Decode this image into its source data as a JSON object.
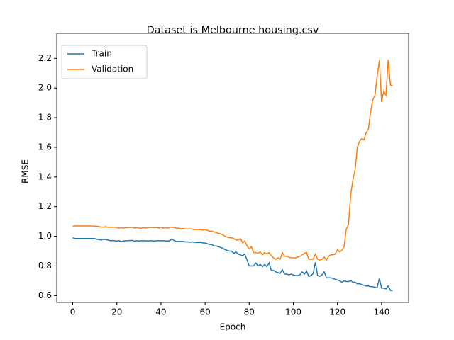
{
  "chart_data": {
    "type": "line",
    "title": "Dataset is Melbourne housing.csv",
    "x_label": "Epoch",
    "y_label": "RMSE",
    "x": [
      0,
      1,
      2,
      3,
      4,
      5,
      6,
      7,
      8,
      9,
      10,
      11,
      12,
      13,
      14,
      15,
      16,
      17,
      18,
      19,
      20,
      21,
      22,
      23,
      24,
      25,
      26,
      27,
      28,
      29,
      30,
      31,
      32,
      33,
      34,
      35,
      36,
      37,
      38,
      39,
      40,
      41,
      42,
      43,
      44,
      45,
      46,
      47,
      48,
      49,
      50,
      51,
      52,
      53,
      54,
      55,
      56,
      57,
      58,
      59,
      60,
      61,
      62,
      63,
      64,
      65,
      66,
      67,
      68,
      69,
      70,
      71,
      72,
      73,
      74,
      75,
      76,
      77,
      78,
      79,
      80,
      81,
      82,
      83,
      84,
      85,
      86,
      87,
      88,
      89,
      90,
      91,
      92,
      93,
      94,
      95,
      96,
      97,
      98,
      99,
      100,
      101,
      102,
      103,
      104,
      105,
      106,
      107,
      108,
      109,
      110,
      111,
      112,
      113,
      114,
      115,
      116,
      117,
      118,
      119,
      120,
      121,
      122,
      123,
      124,
      125,
      126,
      127,
      128,
      129,
      130,
      131,
      132,
      133,
      134,
      135,
      136,
      137,
      138,
      139,
      140,
      141,
      142,
      143,
      144,
      145
    ],
    "series": [
      {
        "name": "Train",
        "color": "#1f77b4",
        "values": [
          0.99,
          0.985,
          0.985,
          0.985,
          0.985,
          0.985,
          0.985,
          0.985,
          0.985,
          0.985,
          0.985,
          0.98,
          0.978,
          0.975,
          0.98,
          0.978,
          0.975,
          0.97,
          0.972,
          0.97,
          0.968,
          0.97,
          0.965,
          0.968,
          0.97,
          0.97,
          0.972,
          0.972,
          0.968,
          0.97,
          0.968,
          0.97,
          0.97,
          0.97,
          0.968,
          0.97,
          0.97,
          0.968,
          0.97,
          0.97,
          0.97,
          0.97,
          0.968,
          0.968,
          0.97,
          0.982,
          0.97,
          0.965,
          0.965,
          0.965,
          0.965,
          0.962,
          0.962,
          0.96,
          0.962,
          0.96,
          0.958,
          0.958,
          0.96,
          0.955,
          0.955,
          0.95,
          0.945,
          0.945,
          0.935,
          0.935,
          0.93,
          0.925,
          0.92,
          0.91,
          0.905,
          0.9,
          0.9,
          0.885,
          0.895,
          0.88,
          0.875,
          0.87,
          0.88,
          0.84,
          0.8,
          0.8,
          0.8,
          0.82,
          0.8,
          0.81,
          0.795,
          0.81,
          0.795,
          0.82,
          0.77,
          0.77,
          0.76,
          0.755,
          0.75,
          0.775,
          0.745,
          0.745,
          0.74,
          0.745,
          0.74,
          0.735,
          0.735,
          0.74,
          0.76,
          0.745,
          0.765,
          0.73,
          0.735,
          0.75,
          0.825,
          0.735,
          0.73,
          0.74,
          0.76,
          0.72,
          0.72,
          0.72,
          0.715,
          0.71,
          0.705,
          0.7,
          0.69,
          0.7,
          0.695,
          0.695,
          0.7,
          0.69,
          0.69,
          0.68,
          0.68,
          0.675,
          0.67,
          0.665,
          0.665,
          0.66,
          0.66,
          0.655,
          0.655,
          0.715,
          0.65,
          0.65,
          0.645,
          0.665,
          0.635,
          0.632
        ]
      },
      {
        "name": "Validation",
        "color": "#ff7f0e",
        "values": [
          1.07,
          1.07,
          1.07,
          1.07,
          1.07,
          1.07,
          1.07,
          1.07,
          1.07,
          1.07,
          1.068,
          1.068,
          1.065,
          1.062,
          1.062,
          1.065,
          1.06,
          1.062,
          1.06,
          1.062,
          1.058,
          1.055,
          1.058,
          1.055,
          1.058,
          1.058,
          1.06,
          1.06,
          1.055,
          1.058,
          1.055,
          1.055,
          1.058,
          1.055,
          1.058,
          1.06,
          1.06,
          1.058,
          1.06,
          1.055,
          1.06,
          1.055,
          1.058,
          1.055,
          1.058,
          1.062,
          1.058,
          1.055,
          1.055,
          1.052,
          1.052,
          1.05,
          1.048,
          1.05,
          1.048,
          1.045,
          1.045,
          1.045,
          1.045,
          1.042,
          1.045,
          1.04,
          1.035,
          1.035,
          1.03,
          1.025,
          1.02,
          1.018,
          1.01,
          1.0,
          0.995,
          0.99,
          0.99,
          0.985,
          0.975,
          0.975,
          0.985,
          0.955,
          0.97,
          0.935,
          0.915,
          0.93,
          0.89,
          0.89,
          0.885,
          0.895,
          0.875,
          0.89,
          0.88,
          0.89,
          0.87,
          0.855,
          0.845,
          0.855,
          0.845,
          0.89,
          0.865,
          0.865,
          0.86,
          0.855,
          0.855,
          0.855,
          0.86,
          0.865,
          0.875,
          0.885,
          0.89,
          0.845,
          0.845,
          0.845,
          0.88,
          0.845,
          0.84,
          0.845,
          0.86,
          0.84,
          0.865,
          0.875,
          0.875,
          0.88,
          0.91,
          0.895,
          0.905,
          0.93,
          1.05,
          1.08,
          1.28,
          1.38,
          1.45,
          1.6,
          1.64,
          1.66,
          1.65,
          1.7,
          1.72,
          1.84,
          1.92,
          1.95,
          2.08,
          2.185,
          1.905,
          1.98,
          1.95,
          2.19,
          2.02,
          2.015
        ]
      }
    ],
    "xlim": [
      -7.25,
      152.25
    ],
    "ylim": [
      0.554,
      2.316
    ],
    "xticks": [
      0,
      20,
      40,
      60,
      80,
      100,
      120,
      140
    ],
    "yticks": [
      0.6,
      0.8,
      {
        "value": 1,
        "label": "1.0"
      },
      1.2,
      1.4,
      1.6,
      1.8,
      {
        "value": 2,
        "label": "2.0"
      },
      2.2
    ],
    "legend": "upper left"
  }
}
